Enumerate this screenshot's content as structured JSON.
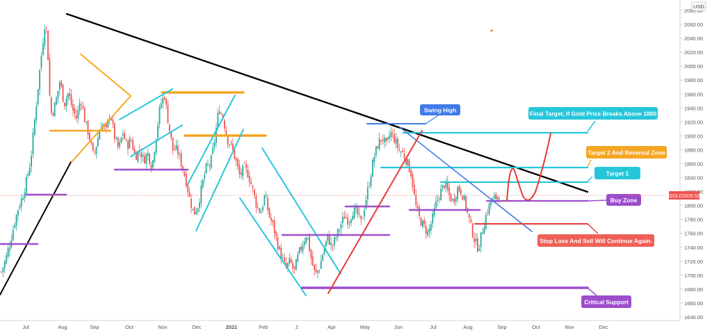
{
  "chart_data": {
    "type": "candlestick",
    "symbol": "GOLD",
    "currency": "USD",
    "last_price": "1816.52",
    "x_ticks": [
      "Jul",
      "Aug",
      "Sep",
      "Oct",
      "Nov",
      "Dec",
      "2021",
      "Feb",
      "2",
      "Apr",
      "May",
      "Jun",
      "Jul",
      "Aug",
      "Sep",
      "Oct",
      "Nov",
      "Dec"
    ],
    "y_ticks": [
      "2080.00",
      "2060.00",
      "2040.00",
      "2020.00",
      "2000.00",
      "1980.00",
      "1960.00",
      "1940.00",
      "1920.00",
      "1900.00",
      "1880.00",
      "1860.00",
      "1840.00",
      "1820.00",
      "1800.00",
      "1780.00",
      "1760.00",
      "1740.00",
      "1720.00",
      "1700.00",
      "1680.00",
      "1660.00",
      "1640.00"
    ],
    "ylim": [
      1636,
      2086
    ],
    "price_path": [
      [
        0,
        1705
      ],
      [
        1,
        1722
      ],
      [
        2,
        1745
      ],
      [
        3,
        1772
      ],
      [
        4,
        1796
      ],
      [
        5,
        1812
      ],
      [
        6,
        1835
      ],
      [
        7,
        1865
      ],
      [
        8,
        1925
      ],
      [
        9,
        1985
      ],
      [
        10,
        2040
      ],
      [
        10.5,
        2068
      ],
      [
        11,
        2035
      ],
      [
        11.5,
        1960
      ],
      [
        12,
        1930
      ],
      [
        13,
        1948
      ],
      [
        14,
        1980
      ],
      [
        15,
        1945
      ],
      [
        16,
        1962
      ],
      [
        17,
        1938
      ],
      [
        18,
        1925
      ],
      [
        19,
        1955
      ],
      [
        20,
        1920
      ],
      [
        21,
        1900
      ],
      [
        22,
        1870
      ],
      [
        23,
        1895
      ],
      [
        24,
        1920
      ],
      [
        25,
        1905
      ],
      [
        26,
        1935
      ],
      [
        27,
        1900
      ],
      [
        28,
        1880
      ],
      [
        29,
        1905
      ],
      [
        30,
        1885
      ],
      [
        31,
        1895
      ],
      [
        32,
        1870
      ],
      [
        33,
        1880
      ],
      [
        34,
        1865
      ],
      [
        35,
        1875
      ],
      [
        36,
        1855
      ],
      [
        37,
        1900
      ],
      [
        38,
        1945
      ],
      [
        39,
        1958
      ],
      [
        40,
        1915
      ],
      [
        41,
        1880
      ],
      [
        42,
        1880
      ],
      [
        43,
        1860
      ],
      [
        44,
        1840
      ],
      [
        45,
        1810
      ],
      [
        46,
        1788
      ],
      [
        47,
        1800
      ],
      [
        48,
        1830
      ],
      [
        49,
        1855
      ],
      [
        50,
        1860
      ],
      [
        51,
        1895
      ],
      [
        52,
        1940
      ],
      [
        53,
        1925
      ],
      [
        54,
        1895
      ],
      [
        55,
        1885
      ],
      [
        56,
        1865
      ],
      [
        57,
        1842
      ],
      [
        58,
        1855
      ],
      [
        59,
        1845
      ],
      [
        60,
        1825
      ],
      [
        61,
        1800
      ],
      [
        62,
        1790
      ],
      [
        63,
        1815
      ],
      [
        64,
        1785
      ],
      [
        65,
        1770
      ],
      [
        66,
        1745
      ],
      [
        67,
        1725
      ],
      [
        68,
        1710
      ],
      [
        69,
        1720
      ],
      [
        70,
        1705
      ],
      [
        71,
        1730
      ],
      [
        72,
        1745
      ],
      [
        73,
        1760
      ],
      [
        74,
        1725
      ],
      [
        75,
        1700
      ],
      [
        76,
        1710
      ],
      [
        77,
        1735
      ],
      [
        78,
        1755
      ],
      [
        79,
        1740
      ],
      [
        80,
        1755
      ],
      [
        81,
        1770
      ],
      [
        82,
        1785
      ],
      [
        83,
        1778
      ],
      [
        84,
        1792
      ],
      [
        85,
        1790
      ],
      [
        86,
        1775
      ],
      [
        87,
        1805
      ],
      [
        88,
        1835
      ],
      [
        89,
        1868
      ],
      [
        90,
        1888
      ],
      [
        91,
        1898
      ],
      [
        92,
        1885
      ],
      [
        93,
        1905
      ],
      [
        94,
        1895
      ],
      [
        95,
        1880
      ],
      [
        96,
        1875
      ],
      [
        97,
        1862
      ],
      [
        98,
        1845
      ],
      [
        99,
        1800
      ],
      [
        100,
        1780
      ],
      [
        101,
        1770
      ],
      [
        102,
        1760
      ],
      [
        103,
        1780
      ],
      [
        104,
        1805
      ],
      [
        105,
        1820
      ],
      [
        106,
        1832
      ],
      [
        107,
        1815
      ],
      [
        108,
        1805
      ],
      [
        109,
        1825
      ],
      [
        110,
        1820
      ],
      [
        111,
        1800
      ],
      [
        112,
        1775
      ],
      [
        113,
        1752
      ],
      [
        114,
        1738
      ],
      [
        115,
        1765
      ],
      [
        116,
        1790
      ],
      [
        117,
        1805
      ],
      [
        118,
        1810
      ],
      [
        119,
        1816.5
      ]
    ],
    "annotations": {
      "swing_high": "Swing High",
      "final_target": "Final Target, If Gold Price Breaks Above 1860",
      "target2": "Target 2 And Reversal Zone",
      "target1": "Target 1",
      "buy_zone": "Buy Zone",
      "stop_loss": "Stop Loss  And Sell Will Continue Again.",
      "critical_support": "Critical Support"
    },
    "colors": {
      "up": "#26a69a",
      "down": "#ef5350",
      "trendline": "#000000",
      "orange": "#f5a623",
      "cyan": "#26c6da",
      "purple": "#9c4dcc",
      "blue": "#3f7be8",
      "red": "#e53935",
      "axis_text": "#555555"
    }
  }
}
